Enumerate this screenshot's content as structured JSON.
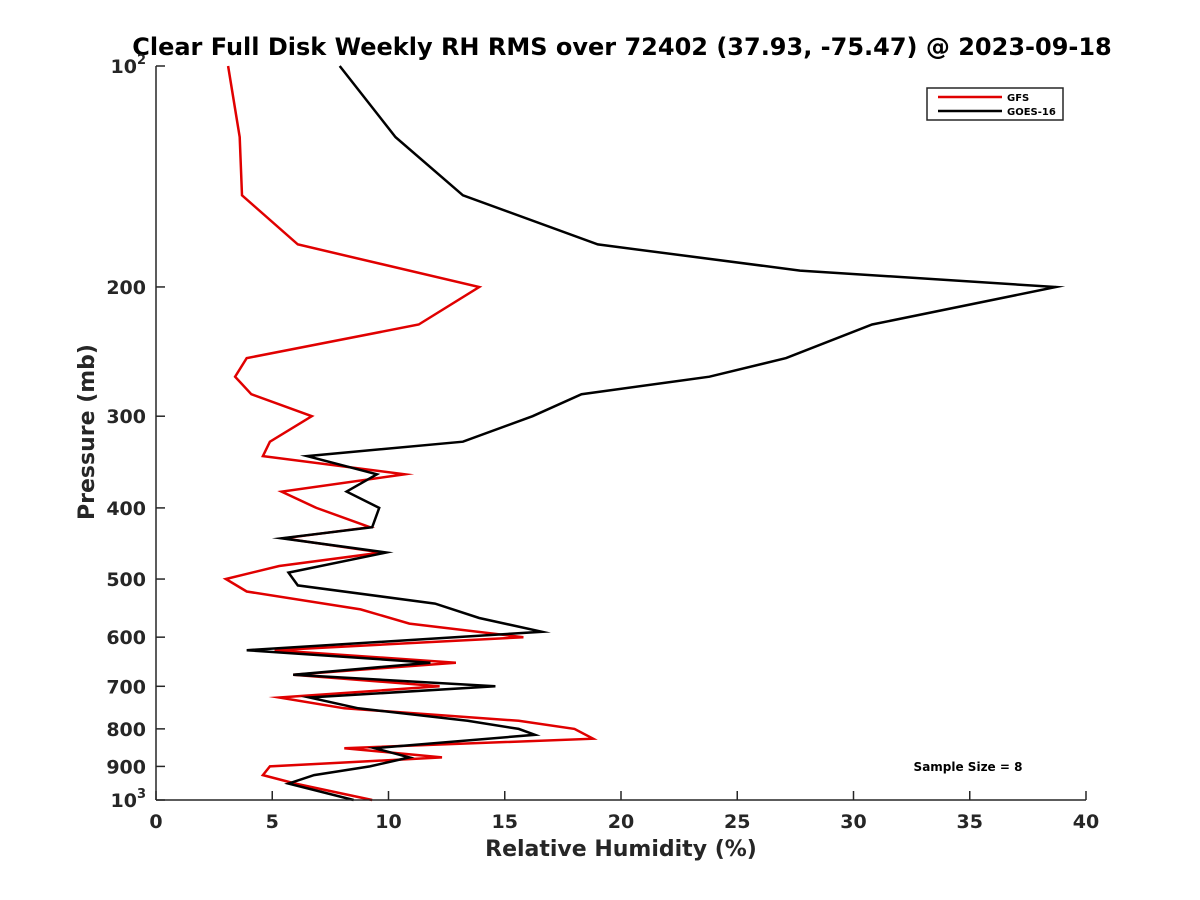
{
  "chart_data": {
    "type": "line",
    "title": "Clear Full Disk Weekly RH RMS over 72402 (37.93, -75.47) @ 2023-09-18",
    "xlabel": "Relative Humidity (%)",
    "ylabel": "Pressure (mb)",
    "xlim": [
      0,
      40
    ],
    "ylim": [
      100,
      1000
    ],
    "yscale": "log",
    "y_reversed": true,
    "grid": false,
    "x_ticks": [
      {
        "value": 0,
        "label": "0"
      },
      {
        "value": 5,
        "label": "5"
      },
      {
        "value": 10,
        "label": "10"
      },
      {
        "value": 15,
        "label": "15"
      },
      {
        "value": 20,
        "label": "20"
      },
      {
        "value": 25,
        "label": "25"
      },
      {
        "value": 30,
        "label": "30"
      },
      {
        "value": 35,
        "label": "35"
      },
      {
        "value": 40,
        "label": "40"
      }
    ],
    "y_ticks": [
      {
        "value": 100,
        "base": "10",
        "exp": "2"
      },
      {
        "value": 200,
        "base": "200",
        "exp": ""
      },
      {
        "value": 300,
        "base": "300",
        "exp": ""
      },
      {
        "value": 400,
        "base": "400",
        "exp": ""
      },
      {
        "value": 500,
        "base": "500",
        "exp": ""
      },
      {
        "value": 600,
        "base": "600",
        "exp": ""
      },
      {
        "value": 700,
        "base": "700",
        "exp": ""
      },
      {
        "value": 800,
        "base": "800",
        "exp": ""
      },
      {
        "value": 900,
        "base": "900",
        "exp": ""
      },
      {
        "value": 1000,
        "base": "10",
        "exp": "3"
      }
    ],
    "legend": {
      "position": "top-right",
      "entries": [
        "GFS",
        "GOES-16"
      ]
    },
    "annotation": "Sample Size = 8",
    "series": [
      {
        "name": "GFS",
        "color": "#e00000",
        "points": [
          [
            3.1,
            100
          ],
          [
            3.6,
            125
          ],
          [
            3.7,
            150
          ],
          [
            6.1,
            175
          ],
          [
            13.9,
            200
          ],
          [
            11.3,
            225
          ],
          [
            3.9,
            250
          ],
          [
            3.4,
            265
          ],
          [
            4.1,
            280
          ],
          [
            6.7,
            300
          ],
          [
            4.9,
            325
          ],
          [
            4.6,
            340
          ],
          [
            10.7,
            360
          ],
          [
            5.4,
            380
          ],
          [
            6.9,
            400
          ],
          [
            9.2,
            425
          ],
          [
            5.5,
            440
          ],
          [
            9.7,
            460
          ],
          [
            5.3,
            480
          ],
          [
            3.0,
            500
          ],
          [
            3.9,
            520
          ],
          [
            8.8,
            550
          ],
          [
            10.9,
            575
          ],
          [
            15.8,
            600
          ],
          [
            5.1,
            625
          ],
          [
            12.9,
            650
          ],
          [
            5.9,
            675
          ],
          [
            12.2,
            700
          ],
          [
            5.3,
            725
          ],
          [
            8.1,
            750
          ],
          [
            15.6,
            780
          ],
          [
            18.0,
            800
          ],
          [
            18.8,
            825
          ],
          [
            8.1,
            850
          ],
          [
            12.3,
            875
          ],
          [
            4.9,
            900
          ],
          [
            4.6,
            925
          ],
          [
            6.0,
            950
          ],
          [
            9.3,
            1000
          ]
        ]
      },
      {
        "name": "GOES-16",
        "color": "#000000",
        "points": [
          [
            7.9,
            100
          ],
          [
            10.3,
            125
          ],
          [
            13.2,
            150
          ],
          [
            19.0,
            175
          ],
          [
            27.7,
            190
          ],
          [
            38.7,
            200
          ],
          [
            30.8,
            225
          ],
          [
            27.1,
            250
          ],
          [
            23.8,
            265
          ],
          [
            18.3,
            280
          ],
          [
            16.2,
            300
          ],
          [
            13.2,
            325
          ],
          [
            6.5,
            340
          ],
          [
            9.5,
            360
          ],
          [
            8.2,
            380
          ],
          [
            9.6,
            400
          ],
          [
            9.3,
            425
          ],
          [
            5.4,
            440
          ],
          [
            9.9,
            460
          ],
          [
            5.7,
            490
          ],
          [
            6.1,
            510
          ],
          [
            12.0,
            540
          ],
          [
            13.9,
            565
          ],
          [
            16.6,
            590
          ],
          [
            3.9,
            625
          ],
          [
            11.8,
            650
          ],
          [
            5.9,
            675
          ],
          [
            14.6,
            700
          ],
          [
            6.6,
            725
          ],
          [
            8.7,
            750
          ],
          [
            13.4,
            780
          ],
          [
            15.6,
            800
          ],
          [
            16.3,
            815
          ],
          [
            9.4,
            850
          ],
          [
            10.9,
            875
          ],
          [
            9.2,
            900
          ],
          [
            6.8,
            925
          ],
          [
            5.7,
            950
          ],
          [
            8.5,
            1000
          ]
        ]
      }
    ]
  }
}
